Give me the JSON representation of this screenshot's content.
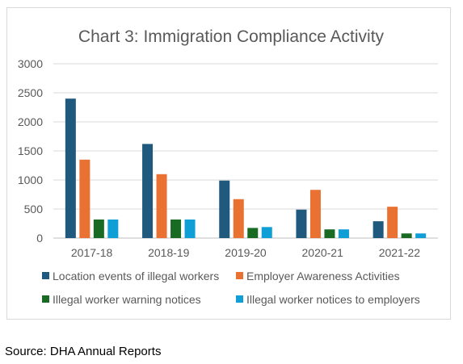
{
  "chart_data": {
    "type": "bar",
    "title": "Chart 3: Immigration Compliance Activity",
    "xlabel": "",
    "ylabel": "",
    "ylim": [
      0,
      3000
    ],
    "yticks": [
      0,
      500,
      1000,
      1500,
      2000,
      2500,
      3000
    ],
    "grid": true,
    "legend_position": "bottom",
    "categories": [
      "2017-18",
      "2018-19",
      "2019-20",
      "2020-21",
      "2021-22"
    ],
    "series": [
      {
        "name": "Location events of illegal workers",
        "color": "#1f5a7e",
        "values": [
          2400,
          1620,
          990,
          490,
          290
        ]
      },
      {
        "name": "Employer Awareness Activities",
        "color": "#e97132",
        "values": [
          1350,
          1100,
          670,
          830,
          540
        ]
      },
      {
        "name": "Illegal worker warning notices",
        "color": "#196b24",
        "values": [
          320,
          320,
          175,
          150,
          80
        ]
      },
      {
        "name": "Illegal worker notices to employers",
        "color": "#0f9ed5",
        "values": [
          320,
          320,
          190,
          150,
          80
        ]
      }
    ]
  },
  "source": "Source: DHA Annual Reports"
}
